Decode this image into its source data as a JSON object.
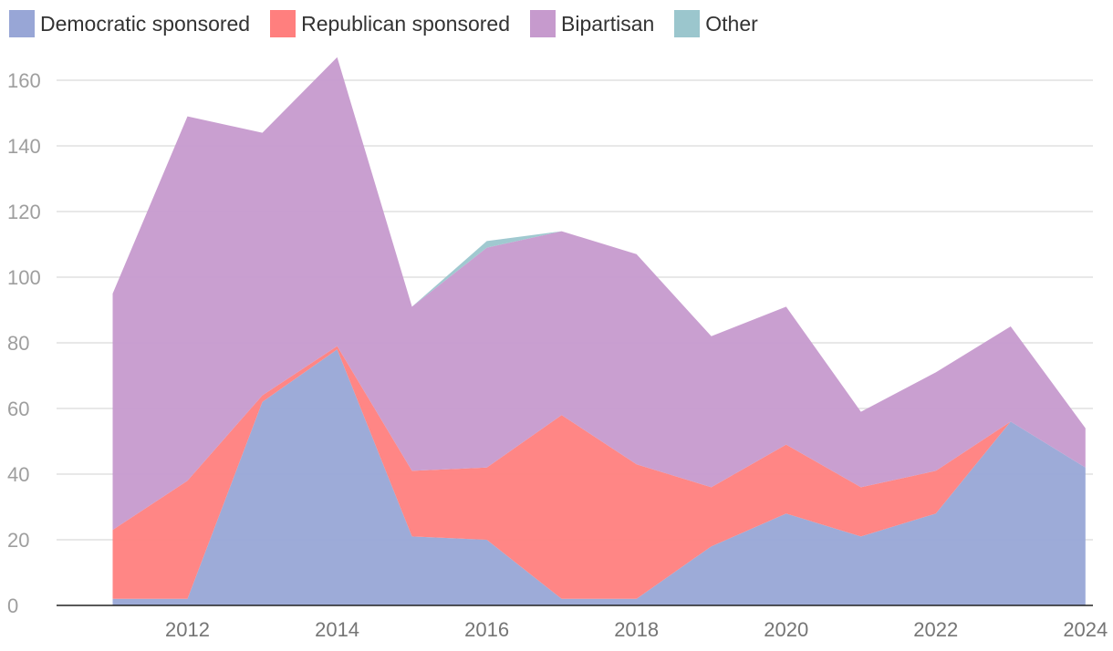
{
  "chart_data": {
    "type": "area",
    "stacked": true,
    "title": "",
    "xlabel": "",
    "ylabel": "",
    "x": [
      2011,
      2012,
      2013,
      2014,
      2015,
      2016,
      2017,
      2018,
      2019,
      2020,
      2021,
      2022,
      2023,
      2024
    ],
    "x_ticks": [
      2012,
      2014,
      2016,
      2018,
      2020,
      2022,
      2024
    ],
    "y_ticks": [
      0,
      20,
      40,
      60,
      80,
      100,
      120,
      140,
      160
    ],
    "ylim": [
      0,
      170
    ],
    "xlim": [
      2010.25,
      2024.1
    ],
    "grid": true,
    "legend_position": "top-left",
    "series": [
      {
        "name": "Democratic sponsored",
        "color": "#98a6d6",
        "values": [
          2,
          2,
          62,
          78,
          21,
          20,
          2,
          2,
          18,
          28,
          21,
          28,
          56,
          42
        ]
      },
      {
        "name": "Republican sponsored",
        "color": "#ff7f7e",
        "values": [
          21,
          36,
          2,
          1,
          20,
          22,
          56,
          41,
          18,
          21,
          15,
          13,
          0,
          0
        ]
      },
      {
        "name": "Bipartisan",
        "color": "#c69acd",
        "values": [
          72,
          111,
          80,
          88,
          50,
          67,
          56,
          64,
          46,
          42,
          23,
          30,
          29,
          12
        ]
      },
      {
        "name": "Other",
        "color": "#9bc6cd",
        "values": [
          0,
          0,
          0,
          0,
          0,
          2,
          0,
          0,
          0,
          0,
          0,
          0,
          0,
          0
        ]
      }
    ]
  }
}
